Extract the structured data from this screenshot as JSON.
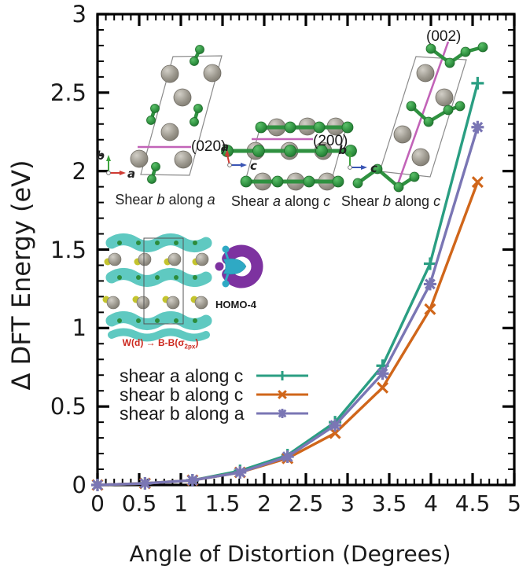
{
  "chart_data": {
    "type": "line",
    "title": "",
    "xlabel": "Angle of Distortion (Degrees)",
    "ylabel": "Δ DFT Energy (eV)",
    "xlim": [
      0,
      5
    ],
    "ylim": [
      0,
      3
    ],
    "x_major_tick_step": 0.5,
    "x_minor_tick_step": 0.1,
    "y_major_tick_step": 0.5,
    "y_minor_tick_step": 0.1,
    "x_tick_labels": [
      "0",
      "0.5",
      "1",
      "1.5",
      "2",
      "2.5",
      "3",
      "3.5",
      "4",
      "4.5",
      "5"
    ],
    "y_tick_labels": [
      "0",
      "0.5",
      "1",
      "1.5",
      "2",
      "2.5",
      "3"
    ],
    "grid": false,
    "legend_position": "inside-left-middle",
    "x": [
      0,
      0.57,
      1.14,
      1.71,
      2.28,
      2.85,
      3.42,
      3.99,
      4.56
    ],
    "series": [
      {
        "name": "shear a along c",
        "color": "#2a9e82",
        "marker": "plus",
        "values": [
          0,
          0.01,
          0.03,
          0.09,
          0.19,
          0.4,
          0.76,
          1.41,
          2.56
        ]
      },
      {
        "name": "shear b along c",
        "color": "#d0661a",
        "marker": "cross",
        "values": [
          0,
          0.01,
          0.03,
          0.08,
          0.17,
          0.33,
          0.62,
          1.12,
          1.93
        ]
      },
      {
        "name": "shear b along a",
        "color": "#7a76b4",
        "marker": "asterisk",
        "values": [
          0,
          0.01,
          0.03,
          0.08,
          0.18,
          0.38,
          0.71,
          1.28,
          2.28
        ]
      }
    ]
  },
  "insets": [
    {
      "name": "shear-b-along-a",
      "caption": {
        "w1": "Shear",
        "l1": "b",
        "w2": "along",
        "l2": "a"
      },
      "plane_label": "(020)",
      "axes": {
        "v": "b",
        "h": "a"
      }
    },
    {
      "name": "shear-a-along-c",
      "caption": {
        "w1": "Shear",
        "l1": "a",
        "w2": "along",
        "l2": "c"
      },
      "plane_label": "(200)",
      "axes": {
        "v": "a",
        "h": "c"
      }
    },
    {
      "name": "shear-b-along-c",
      "caption": {
        "w1": "Shear",
        "l1": "b",
        "w2": "along",
        "l2": "c"
      },
      "plane_label": "(002)",
      "axes": {
        "v": "b",
        "h": "c"
      }
    }
  ],
  "orbital": {
    "label": "HOMO-4",
    "formula": {
      "pre": "W(d) → B-B(σ",
      "sub": "2px",
      "post": ")"
    }
  },
  "colors": {
    "plane_line": "#c263b8",
    "atom_green": "#2f9140",
    "atom_gray": "#9b978d",
    "isosurface_teal": "#5fc9c1",
    "orbital_purple": "#7d32a0",
    "orbital_cyan": "#2fa9c4",
    "formula_red": "#cc2a20"
  }
}
